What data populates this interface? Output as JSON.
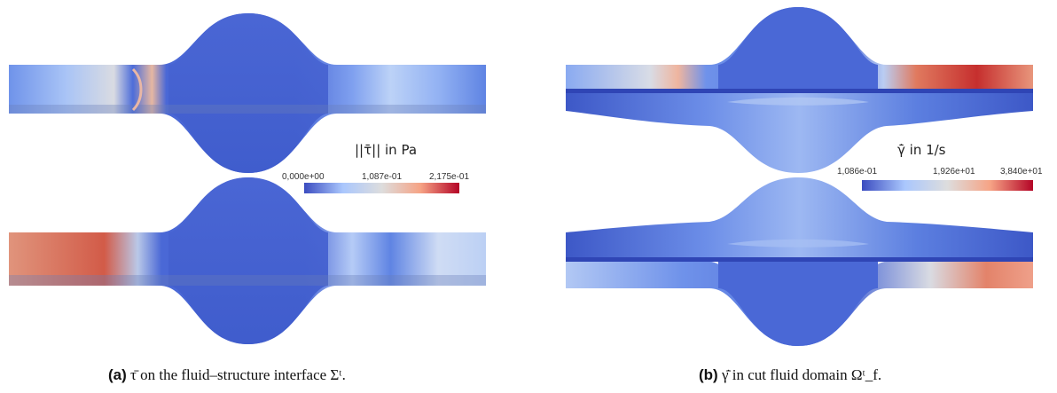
{
  "panel_a": {
    "colorbar": {
      "title": "||τ̄|| in Pa",
      "tick_min": "0,000e+00",
      "tick_mid": "1,087e-01",
      "tick_max": "2,175e-01",
      "colors": [
        "#3b4cc0",
        "#aac7fd",
        "#dddddd",
        "#f6a385",
        "#b40426"
      ]
    },
    "caption_tag": "(a)",
    "caption_text": "τ̄ on the fluid–structure interface Σᵗ."
  },
  "panel_b": {
    "colorbar": {
      "title": "γ̄̇ in 1/s",
      "tick_min": "1,086e-01",
      "tick_mid": "1,926e+01",
      "tick_max": "3,840e+01",
      "colors": [
        "#3b4cc0",
        "#aac7fd",
        "#dddddd",
        "#f6a385",
        "#b40426"
      ]
    },
    "caption_tag": "(b)",
    "caption_text": "γ̄̇ in cut fluid domain Ωᵗ_f."
  }
}
